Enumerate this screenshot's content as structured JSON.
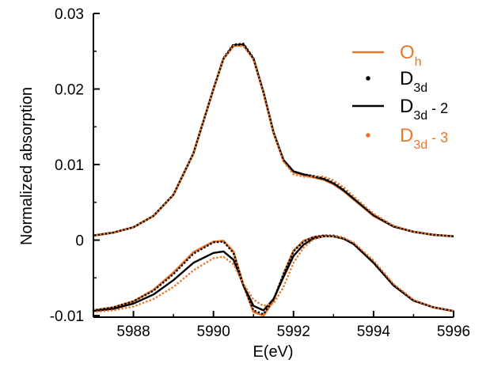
{
  "chart_data": {
    "type": "line",
    "xlabel": "E(eV)",
    "ylabel": "Normalized absorption",
    "xlim": [
      5987,
      5996
    ],
    "ylim": [
      -0.0102,
      0.03
    ],
    "xticks": [
      5988,
      5990,
      5992,
      5994,
      5996
    ],
    "xtick_labels": [
      "5988",
      "5990",
      "5992",
      "5994",
      "5996"
    ],
    "yticks": [
      -0.01,
      0,
      0.01,
      0.02,
      0.03
    ],
    "ytick_labels": [
      "-0.01",
      "0",
      "0.01",
      "0.02",
      "0.03"
    ],
    "grid": false,
    "legend_position": "top-right",
    "colors": {
      "orange": "#e8772e",
      "black": "#000000"
    },
    "legend": [
      {
        "main": "O",
        "sub": "h",
        "suffix": "",
        "color": "#e8772e",
        "marker": "line"
      },
      {
        "main": "D",
        "sub": "3d",
        "suffix": "",
        "color": "#000000",
        "marker": "dot"
      },
      {
        "main": "D",
        "sub": "3d",
        "suffix": " - 2",
        "color": "#000000",
        "marker": "line"
      },
      {
        "main": "D",
        "sub": "3d",
        "suffix": " - 3",
        "color": "#e8772e",
        "marker": "dot"
      }
    ],
    "x": [
      5987,
      5987.5,
      5988,
      5988.5,
      5989,
      5989.5,
      5990,
      5990.25,
      5990.5,
      5990.75,
      5991,
      5991.25,
      5991.5,
      5991.75,
      5992,
      5992.25,
      5992.5,
      5992.75,
      5993,
      5993.25,
      5993.5,
      5994,
      5994.5,
      5995,
      5995.5,
      5996
    ],
    "series": [
      {
        "color": "#e8772e",
        "style": "solid",
        "y": [
          0.0006,
          0.001,
          0.0017,
          0.0032,
          0.006,
          0.0115,
          0.02,
          0.024,
          0.0257,
          0.0258,
          0.024,
          0.0195,
          0.0142,
          0.0105,
          0.009,
          0.0086,
          0.0083,
          0.008,
          0.0074,
          0.0065,
          0.0054,
          0.0032,
          0.0018,
          0.0011,
          0.0007,
          0.0005
        ]
      },
      {
        "color": "#000000",
        "style": "dots",
        "y": [
          0.0006,
          0.001,
          0.0017,
          0.0032,
          0.006,
          0.0115,
          0.02,
          0.0241,
          0.0259,
          0.026,
          0.0241,
          0.0196,
          0.0143,
          0.0106,
          0.0091,
          0.0087,
          0.0085,
          0.0082,
          0.0076,
          0.0067,
          0.0056,
          0.0034,
          0.0019,
          0.0011,
          0.0007,
          0.0005
        ]
      },
      {
        "color": "#000000",
        "style": "solid",
        "y": [
          0.0006,
          0.001,
          0.0017,
          0.0032,
          0.006,
          0.0115,
          0.02,
          0.024,
          0.0258,
          0.0259,
          0.024,
          0.0196,
          0.0143,
          0.0106,
          0.0091,
          0.0087,
          0.0084,
          0.0081,
          0.0075,
          0.0066,
          0.0055,
          0.0033,
          0.0018,
          0.0011,
          0.0007,
          0.0005
        ]
      },
      {
        "color": "#e8772e",
        "style": "dots",
        "y": [
          0.0006,
          0.001,
          0.0017,
          0.0032,
          0.006,
          0.0115,
          0.02,
          0.024,
          0.0257,
          0.0257,
          0.0239,
          0.0195,
          0.0142,
          0.0104,
          0.0087,
          0.0084,
          0.0084,
          0.0084,
          0.0079,
          0.007,
          0.0058,
          0.0035,
          0.0019,
          0.0011,
          0.0007,
          0.0005
        ]
      },
      {
        "color": "#e8772e",
        "style": "solid",
        "y": [
          -0.0093,
          -0.0089,
          -0.0081,
          -0.0066,
          -0.0043,
          -0.0016,
          -0.0002,
          -0.0001,
          -0.0015,
          -0.006,
          -0.0095,
          -0.01,
          -0.008,
          -0.0045,
          -0.0014,
          -0.0001,
          0.0004,
          0.0006,
          0.0005,
          0.0002,
          -0.0005,
          -0.003,
          -0.006,
          -0.008,
          -0.0089,
          -0.0094
        ]
      },
      {
        "color": "#000000",
        "style": "dots",
        "y": [
          -0.0093,
          -0.0089,
          -0.0081,
          -0.0067,
          -0.0045,
          -0.0018,
          -0.0003,
          -0.0002,
          -0.0017,
          -0.006,
          -0.0093,
          -0.0098,
          -0.0079,
          -0.0045,
          -0.0015,
          -0.0002,
          0.0004,
          0.0006,
          0.0006,
          0.0003,
          -0.0004,
          -0.0029,
          -0.0059,
          -0.008,
          -0.0089,
          -0.0094
        ]
      },
      {
        "color": "#000000",
        "style": "solid",
        "y": [
          -0.0094,
          -0.0091,
          -0.0084,
          -0.0072,
          -0.0053,
          -0.003,
          -0.0017,
          -0.0015,
          -0.0026,
          -0.006,
          -0.0087,
          -0.0093,
          -0.0078,
          -0.0049,
          -0.0021,
          -0.0006,
          0.0002,
          0.0005,
          0.0005,
          0.0002,
          -0.0005,
          -0.003,
          -0.006,
          -0.008,
          -0.0089,
          -0.0094
        ]
      },
      {
        "color": "#e8772e",
        "style": "dots",
        "y": [
          -0.0095,
          -0.0093,
          -0.0088,
          -0.0078,
          -0.0062,
          -0.004,
          -0.0024,
          -0.0022,
          -0.0032,
          -0.0058,
          -0.0079,
          -0.0087,
          -0.0084,
          -0.0062,
          -0.003,
          -0.001,
          0.0001,
          0.0005,
          0.0005,
          0.0003,
          -0.0003,
          -0.0027,
          -0.0058,
          -0.0079,
          -0.0089,
          -0.0094
        ]
      }
    ]
  }
}
